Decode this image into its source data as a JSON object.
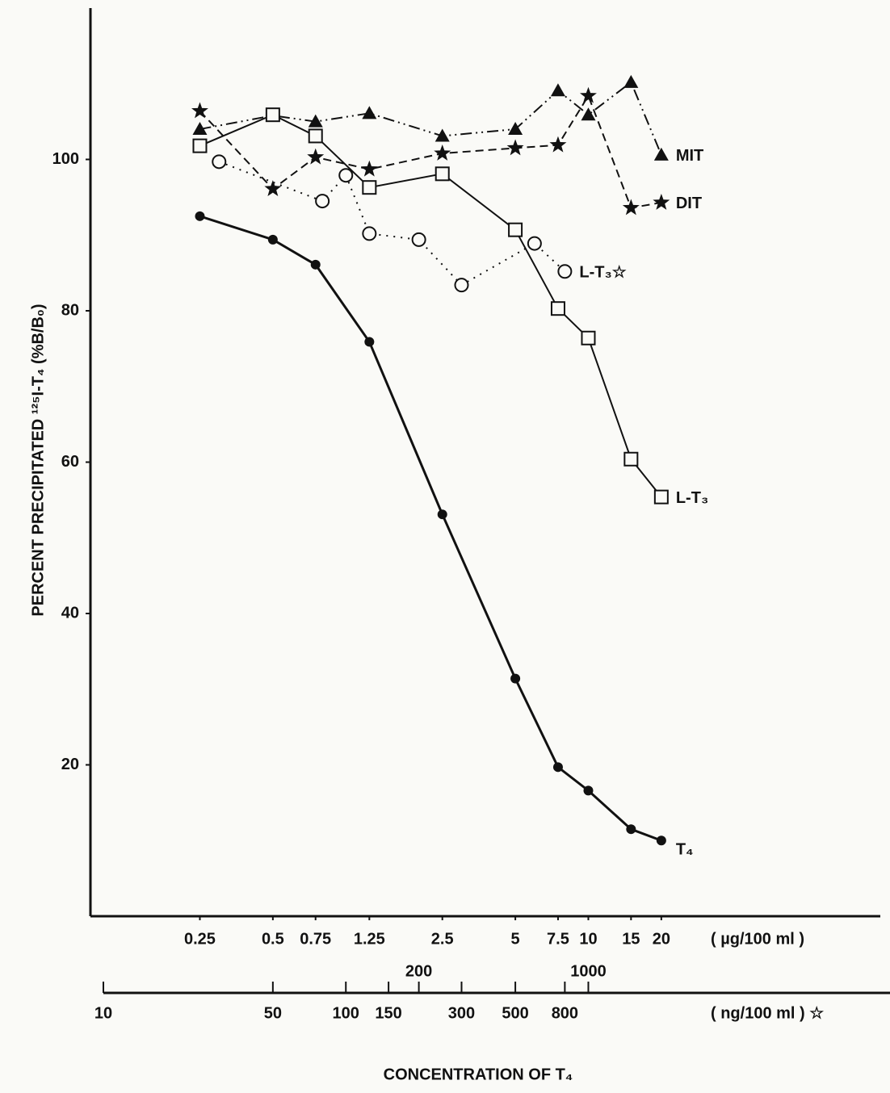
{
  "chart_data": {
    "type": "line",
    "y_label": "PERCENT  PRECIPITATED  ¹²⁵I-T₄ (%B/B₀)",
    "x_label": "CONCENTRATION  OF  T₄",
    "x_unit": "( µg/100 ml )",
    "x2_unit": "( ng/100 ml ) ☆",
    "xscale": "log",
    "xlim": [
      0.1,
      160
    ],
    "xticks": [
      0.25,
      0.5,
      0.75,
      1.25,
      2.5,
      5,
      7.5,
      10,
      15,
      20
    ],
    "x2lim": [
      10,
      16000
    ],
    "x2ticks": [
      10,
      50,
      100,
      150,
      200,
      300,
      500,
      800,
      1000
    ],
    "ylim": [
      0,
      120
    ],
    "yticks": [
      20,
      40,
      60,
      80,
      100
    ],
    "series": [
      {
        "name": "MIT",
        "color": "#111111",
        "line_style": "dash-dot-dot",
        "marker": "triangle",
        "x": [
          0.25,
          0.5,
          0.75,
          1.25,
          2.5,
          5,
          7.5,
          10,
          15,
          20
        ],
        "values": [
          104,
          105.8,
          105,
          106.1,
          103.1,
          104,
          109.1,
          105.9,
          110.2,
          100.6
        ]
      },
      {
        "name": "DIT",
        "color": "#111111",
        "line_style": "dashed",
        "marker": "star",
        "x": [
          0.25,
          0.5,
          0.75,
          1.25,
          2.5,
          5,
          7.5,
          10,
          15,
          20
        ],
        "values": [
          106.4,
          96.1,
          100.3,
          98.7,
          100.8,
          101.5,
          101.9,
          108.4,
          93.6,
          94.3
        ]
      },
      {
        "name": "L-T₃☆",
        "color": "#111111",
        "line_style": "dotted",
        "marker": "circle",
        "axis": "x2",
        "x": [
          30,
          80,
          100,
          125,
          200,
          300,
          600,
          800
        ],
        "values": [
          99.7,
          94.5,
          97.9,
          90.2,
          89.4,
          83.4,
          88.9,
          85.2
        ]
      },
      {
        "name": "L-T₃",
        "color": "#111111",
        "line_style": "solid",
        "marker": "square",
        "x": [
          0.25,
          0.5,
          0.75,
          1.25,
          2.5,
          5,
          7.5,
          10,
          15,
          20
        ],
        "values": [
          101.8,
          105.9,
          103.1,
          96.3,
          98.1,
          90.7,
          80.3,
          76.4,
          60.4,
          55.4
        ]
      },
      {
        "name": "T₄",
        "color": "#111111",
        "line_style": "bold",
        "marker": "dot",
        "x": [
          0.25,
          0.5,
          0.75,
          1.25,
          2.5,
          5,
          7.5,
          10,
          15,
          20
        ],
        "values": [
          92.5,
          89.4,
          86.1,
          75.9,
          53.1,
          31.4,
          19.7,
          16.6,
          11.5,
          10
        ]
      }
    ]
  }
}
